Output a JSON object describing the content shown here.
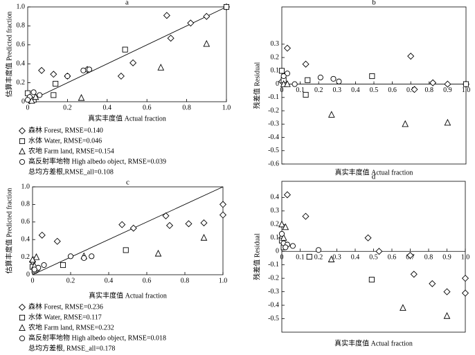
{
  "chart_data": [
    {
      "type": "scatter",
      "title": "a",
      "xlabel": "真实丰度值  Actual fraction",
      "ylabel": "估算丰度值  Predicted fraction",
      "xlim": [
        0,
        1
      ],
      "ylim": [
        0,
        1
      ],
      "xticks": [
        0,
        0.2,
        0.4,
        0.6,
        0.8,
        {
          "value": 1,
          "label": "1.0"
        }
      ],
      "yticks": [
        0,
        0.2,
        0.4,
        0.6,
        0.8,
        {
          "value": 1,
          "label": "1.0"
        }
      ],
      "identity_line": true,
      "box": true,
      "series": [
        {
          "name": "森林  Forest, RMSE=0.140",
          "marker": "diamond",
          "x": [
            0.7,
            0.82,
            0.9,
            1.0,
            0.72,
            0.53,
            0.47,
            0.3,
            0.2,
            0.13,
            0.07,
            0.01
          ],
          "y": [
            0.91,
            0.83,
            0.9,
            1.0,
            0.67,
            0.41,
            0.27,
            0.34,
            0.27,
            0.29,
            0.33,
            0.01
          ]
        },
        {
          "name": "水体  Water, RMSE=0.046",
          "marker": "square",
          "x": [
            0,
            0.01,
            0.49,
            0.14,
            0.13,
            0.03,
            1.0
          ],
          "y": [
            0.09,
            0.03,
            0.55,
            0.19,
            0.07,
            0.02,
            1.0
          ]
        },
        {
          "name": "农地  Farm land, RMSE=0.154",
          "marker": "triangle",
          "x": [
            0.9,
            0.67,
            0.27,
            0.04,
            0.02
          ],
          "y": [
            0.61,
            0.36,
            0.04,
            0.05,
            0.01
          ]
        },
        {
          "name": "高反射率地物  High albedo object, RMSE=0.039",
          "marker": "circle",
          "x": [
            0.28,
            0.31,
            0.2,
            0.06,
            0.03,
            0.01,
            0
          ],
          "y": [
            0.33,
            0.34,
            0.27,
            0.07,
            0.1,
            0.05,
            0.02
          ]
        }
      ],
      "note": "总均方差根,RMSE_all=0.108"
    },
    {
      "type": "scatter",
      "title": "b",
      "xlabel": "真实丰度值  Actual fraction",
      "ylabel": "残差值  Residual",
      "xlim": [
        0,
        1
      ],
      "ylim": [
        -0.6,
        0.58
      ],
      "xticks": [
        0,
        0.1,
        0.2,
        0.3,
        0.4,
        0.5,
        0.6,
        0.7,
        0.8,
        0.9,
        {
          "value": 1,
          "label": "1.0"
        }
      ],
      "yticks": [
        -0.6,
        -0.5,
        -0.4,
        -0.3,
        -0.2,
        -0.1,
        0,
        0.1,
        0.2,
        0.3
      ],
      "x_axis_at_zero": true,
      "series": [
        {
          "marker": "diamond",
          "x": [
            0.03,
            0.13,
            0.7,
            0.72,
            0.82,
            0.9,
            1.0,
            0
          ],
          "y": [
            0.27,
            0.15,
            0.21,
            -0.04,
            0.01,
            0.0,
            0.0,
            0.02
          ]
        },
        {
          "marker": "square",
          "x": [
            0,
            0.01,
            0.13,
            0.14,
            0.49,
            1.0
          ],
          "y": [
            0.1,
            0.03,
            -0.08,
            0.03,
            0.06,
            0
          ]
        },
        {
          "marker": "triangle",
          "x": [
            0.27,
            0.67,
            0.9,
            0.01,
            0.03
          ],
          "y": [
            -0.23,
            -0.3,
            -0.29,
            0.0,
            0.0
          ]
        },
        {
          "marker": "circle",
          "x": [
            0.07,
            0.21,
            0.28,
            0.31,
            0.03,
            0.01
          ],
          "y": [
            0.0,
            0.05,
            0.04,
            0.02,
            0.08,
            0.06
          ]
        }
      ]
    },
    {
      "type": "scatter",
      "title": "c",
      "xlabel": "真实丰度值  Actual fraction",
      "ylabel": "估算丰度值  Predicted fraction",
      "xlim": [
        0,
        1
      ],
      "ylim": [
        0,
        1
      ],
      "xticks": [
        0,
        0.2,
        0.4,
        0.6,
        0.8,
        {
          "value": 1,
          "label": "1.0"
        }
      ],
      "yticks": [
        0,
        0.2,
        0.4,
        0.6,
        0.8,
        {
          "value": 1,
          "label": "1.0"
        }
      ],
      "identity_line": true,
      "box": true,
      "series": [
        {
          "name": "森林  Forest, RMSE=0.236",
          "marker": "diamond",
          "x": [
            1.0,
            1.0,
            0.9,
            0.82,
            0.7,
            0.72,
            0.53,
            0.47,
            0.13,
            0.05,
            0,
            0.02
          ],
          "y": [
            0.8,
            0.68,
            0.59,
            0.58,
            0.67,
            0.56,
            0.53,
            0.57,
            0.38,
            0.45,
            0.15,
            0.05
          ]
        },
        {
          "name": "水体  Water, RMSE=0.117",
          "marker": "square",
          "x": [
            0.49,
            0.16,
            0.01,
            0
          ],
          "y": [
            0.28,
            0.11,
            0.05,
            0.09
          ]
        },
        {
          "name": "农地  Farm land, RMSE=0.232",
          "marker": "triangle",
          "x": [
            0.9,
            0.66,
            0.27,
            0.02,
            0,
            0.01
          ],
          "y": [
            0.42,
            0.24,
            0.21,
            0.2,
            0.17,
            0.1
          ]
        },
        {
          "name": "高反射率地物  High albedo object, RMSE=0.018",
          "marker": "circle",
          "x": [
            0.06,
            0.2,
            0.27,
            0.31,
            0.03,
            0.01
          ],
          "y": [
            0.11,
            0.21,
            0.19,
            0.21,
            0.08,
            0.06
          ]
        }
      ],
      "note": "总均方差根, RMSE_all=0.178"
    },
    {
      "type": "scatter",
      "title": "d",
      "xlabel": "真实丰度值  Actual fraction",
      "ylabel": "残差值  Residual",
      "xlim": [
        0,
        1
      ],
      "ylim": [
        -0.6,
        0.52
      ],
      "xticks": [
        0,
        0.1,
        0.2,
        0.3,
        0.4,
        0.5,
        0.6,
        0.7,
        0.8,
        0.9,
        {
          "value": 1,
          "label": "1.0"
        }
      ],
      "yticks": [
        -0.5,
        -0.4,
        -0.3,
        -0.2,
        -0.1,
        0,
        0.1,
        0.2,
        0.3,
        0.4
      ],
      "x_axis_at_zero": true,
      "series": [
        {
          "marker": "diamond",
          "x": [
            0.03,
            0.13,
            0.47,
            0.53,
            0.7,
            0.72,
            0.82,
            0.9,
            1.0,
            1.0,
            0
          ],
          "y": [
            0.42,
            0.26,
            0.1,
            0.0,
            -0.03,
            -0.17,
            -0.24,
            -0.3,
            -0.2,
            -0.31,
            0.1
          ]
        },
        {
          "marker": "square",
          "x": [
            0.15,
            0.49,
            0.01,
            0
          ],
          "y": [
            -0.04,
            -0.21,
            0.03,
            0.08
          ]
        },
        {
          "marker": "triangle",
          "x": [
            0,
            0.02,
            0.27,
            0.66,
            0.9,
            0.01
          ],
          "y": [
            0.2,
            0.18,
            -0.06,
            -0.42,
            -0.48,
            0.1
          ]
        },
        {
          "marker": "circle",
          "x": [
            0.06,
            0.2,
            0.01,
            0.03,
            0.02,
            0
          ],
          "y": [
            0.04,
            0.01,
            0.06,
            0.05,
            0.03,
            0.13
          ]
        }
      ]
    }
  ]
}
